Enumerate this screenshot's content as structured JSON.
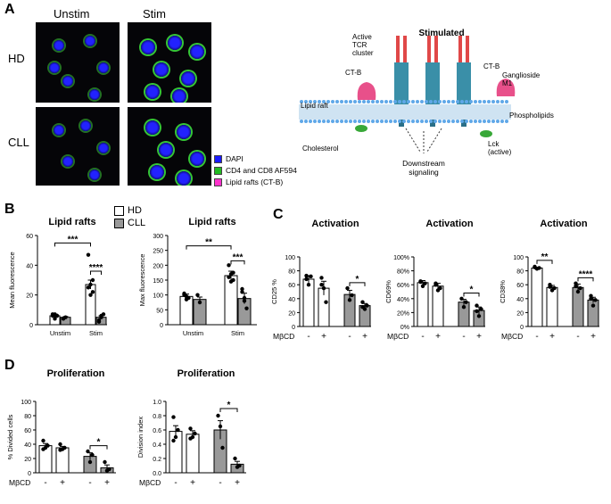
{
  "panels": {
    "A": "A",
    "B": "B",
    "C": "C",
    "D": "D"
  },
  "microscopy": {
    "col_unstim": "Unstim",
    "col_stim": "Stim",
    "row_hd": "HD",
    "row_cll": "CLL",
    "legend": [
      {
        "label": "DAPI",
        "color": "#1a1aff"
      },
      {
        "label": "CD4 and CD8 AF594",
        "color": "#22bb22"
      },
      {
        "label": "Lipid rafts (CT-B)",
        "color": "#ff33cc"
      }
    ]
  },
  "schematic": {
    "title": "Stimulated",
    "active_tcr": "Active",
    "active_tcr2": "TCR",
    "active_tcr3": "cluster",
    "ctb_left": "CT-B",
    "ctb_right": "CT-B",
    "ganglioside": "Ganglioside",
    "ganglioside2": "M1",
    "lipid_raft": "Lipid raft",
    "phospholipids": "Phospholipids",
    "cholesterol": "Cholesterol",
    "lck": "Lck",
    "lck2": "(active)",
    "downstream": "Downstream",
    "downstream2": "signaling"
  },
  "legend_B": {
    "hd": "HD",
    "cll": "CLL"
  },
  "chart_data": [
    {
      "id": "B1",
      "type": "bar",
      "title": "Lipid rafts",
      "ylabel": "Mean fluorescence",
      "ylim": [
        0,
        60
      ],
      "yticks": [
        0,
        20,
        40,
        60
      ],
      "categories": [
        "Unstim",
        "Stim"
      ],
      "series": [
        {
          "name": "HD",
          "values": [
            6,
            27
          ],
          "sem": [
            1,
            3
          ]
        },
        {
          "name": "CLL",
          "values": [
            5,
            5
          ],
          "sem": [
            0.5,
            1
          ]
        }
      ],
      "points": [
        [
          [
            7,
            4,
            6,
            6,
            7,
            6
          ],
          [
            4,
            5
          ]
        ],
        [
          [
            47,
            20,
            30,
            25,
            27,
            22
          ],
          [
            3,
            6,
            7,
            2,
            5
          ]
        ]
      ],
      "sig": [
        {
          "label": "***"
        },
        {
          "label": "****"
        }
      ]
    },
    {
      "id": "B2",
      "type": "bar",
      "title": "Lipid rafts",
      "ylabel": "Max fluorescence",
      "ylim": [
        0,
        300
      ],
      "yticks": [
        0,
        50,
        100,
        150,
        200,
        250,
        300
      ],
      "categories": [
        "Unstim",
        "Stim"
      ],
      "series": [
        {
          "name": "HD",
          "values": [
            95,
            165
          ],
          "sem": [
            8,
            15
          ]
        },
        {
          "name": "CLL",
          "values": [
            85,
            88
          ],
          "sem": [
            8,
            18
          ]
        }
      ],
      "points": [
        [
          [
            105,
            85,
            90,
            100,
            95
          ],
          [
            100,
            75
          ]
        ],
        [
          [
            200,
            170,
            150,
            160,
            145,
            175
          ],
          [
            110,
            80,
            55,
            120,
            90
          ]
        ]
      ],
      "sig": [
        {
          "label": "**"
        },
        {
          "label": "***"
        }
      ]
    },
    {
      "id": "C1",
      "type": "bar",
      "title": "Activation",
      "ylabel": "CD25 %",
      "ylim": [
        0,
        100
      ],
      "yticks": [
        0,
        20,
        40,
        60,
        80,
        100
      ],
      "categories": [
        "HD",
        "CLL"
      ],
      "xticks": [
        "-",
        "+",
        "-",
        "+"
      ],
      "xprefix": "MβCD",
      "bars": [
        {
          "value": 68,
          "sem": 5,
          "fill": "#ffffff",
          "points": [
            73,
            60,
            72,
            68
          ]
        },
        {
          "value": 55,
          "sem": 10,
          "fill": "#ffffff",
          "points": [
            70,
            55,
            35,
            60
          ]
        },
        {
          "value": 46,
          "sem": 6,
          "fill": "#999999",
          "points": [
            55,
            38,
            45
          ]
        },
        {
          "value": 30,
          "sem": 3,
          "fill": "#999999",
          "points": [
            35,
            25,
            30,
            28
          ]
        }
      ],
      "sig": [
        {
          "label": "*"
        }
      ]
    },
    {
      "id": "C2",
      "type": "bar",
      "title": "Activation",
      "ylabel": "CD69%",
      "ylim": [
        0,
        100
      ],
      "yticks": [
        0,
        20,
        40,
        60,
        80,
        100
      ],
      "yticklabels": [
        "0%",
        "20%",
        "40%",
        "60%",
        "80%",
        "100%"
      ],
      "categories": [
        "HD",
        "CLL"
      ],
      "xticks": [
        "-",
        "+",
        "-",
        "+"
      ],
      "xprefix": "MβCD",
      "bars": [
        {
          "value": 63,
          "sem": 3,
          "fill": "#ffffff",
          "points": [
            65,
            58,
            62,
            64
          ]
        },
        {
          "value": 58,
          "sem": 4,
          "fill": "#ffffff",
          "points": [
            62,
            52,
            55,
            60
          ]
        },
        {
          "value": 35,
          "sem": 4,
          "fill": "#999999",
          "points": [
            40,
            28,
            35
          ]
        },
        {
          "value": 23,
          "sem": 5,
          "fill": "#999999",
          "points": [
            30,
            15,
            25,
            22
          ]
        }
      ],
      "sig": [
        {
          "label": "*"
        }
      ]
    },
    {
      "id": "C3",
      "type": "bar",
      "title": "Activation",
      "ylabel": "CD38%",
      "ylim": [
        0,
        100
      ],
      "yticks": [
        0,
        20,
        40,
        60,
        80,
        100
      ],
      "categories": [
        "HD",
        "CLL"
      ],
      "xticks": [
        "-",
        "+",
        "-",
        "+"
      ],
      "xprefix": "MβCD",
      "bars": [
        {
          "value": 84,
          "sem": 1,
          "fill": "#ffffff",
          "points": [
            85,
            83,
            84,
            86
          ]
        },
        {
          "value": 56,
          "sem": 3,
          "fill": "#ffffff",
          "points": [
            60,
            52,
            55,
            57
          ]
        },
        {
          "value": 56,
          "sem": 5,
          "fill": "#999999",
          "points": [
            62,
            50,
            55,
            58
          ]
        },
        {
          "value": 38,
          "sem": 4,
          "fill": "#999999",
          "points": [
            44,
            30,
            38,
            40
          ]
        }
      ],
      "sig": [
        {
          "label": "**"
        },
        {
          "label": "****"
        }
      ]
    },
    {
      "id": "D1",
      "type": "bar",
      "title": "Proliferation",
      "ylabel": "% Divided cells",
      "ylim": [
        0,
        100
      ],
      "yticks": [
        0,
        20,
        40,
        60,
        80,
        100
      ],
      "categories": [
        "HD",
        "CLL"
      ],
      "xticks": [
        "-",
        "+",
        "-",
        "+"
      ],
      "xprefix": "MβCD",
      "bars": [
        {
          "value": 38,
          "sem": 3,
          "fill": "#ffffff",
          "points": [
            45,
            35,
            38,
            33
          ]
        },
        {
          "value": 35,
          "sem": 2,
          "fill": "#ffffff",
          "points": [
            40,
            33,
            35,
            32
          ]
        },
        {
          "value": 23,
          "sem": 5,
          "fill": "#999999",
          "points": [
            30,
            15,
            25
          ]
        },
        {
          "value": 7,
          "sem": 4,
          "fill": "#999999",
          "points": [
            15,
            3,
            5
          ]
        }
      ],
      "sig": [
        {
          "label": "*"
        }
      ]
    },
    {
      "id": "D2",
      "type": "bar",
      "title": "Proliferation",
      "ylabel": "Division index",
      "ylim": [
        0,
        1.0
      ],
      "yticks": [
        0,
        0.2,
        0.4,
        0.6,
        0.8,
        1.0
      ],
      "yticklabels": [
        "0.0",
        "0.2",
        "0.4",
        "0.6",
        "0.8",
        "1.0"
      ],
      "categories": [
        "HD",
        "CLL"
      ],
      "xticks": [
        "-",
        "+",
        "-",
        "+"
      ],
      "xprefix": "MβCD",
      "bars": [
        {
          "value": 0.58,
          "sem": 0.08,
          "fill": "#ffffff",
          "points": [
            0.78,
            0.5,
            0.6,
            0.45
          ]
        },
        {
          "value": 0.54,
          "sem": 0.05,
          "fill": "#ffffff",
          "points": [
            0.62,
            0.5,
            0.55,
            0.48
          ]
        },
        {
          "value": 0.6,
          "sem": 0.13,
          "fill": "#999999",
          "points": [
            0.8,
            0.65,
            0.35
          ]
        },
        {
          "value": 0.12,
          "sem": 0.04,
          "fill": "#999999",
          "points": [
            0.2,
            0.08,
            0.1
          ]
        }
      ],
      "sig": [
        {
          "label": "*"
        }
      ]
    }
  ]
}
